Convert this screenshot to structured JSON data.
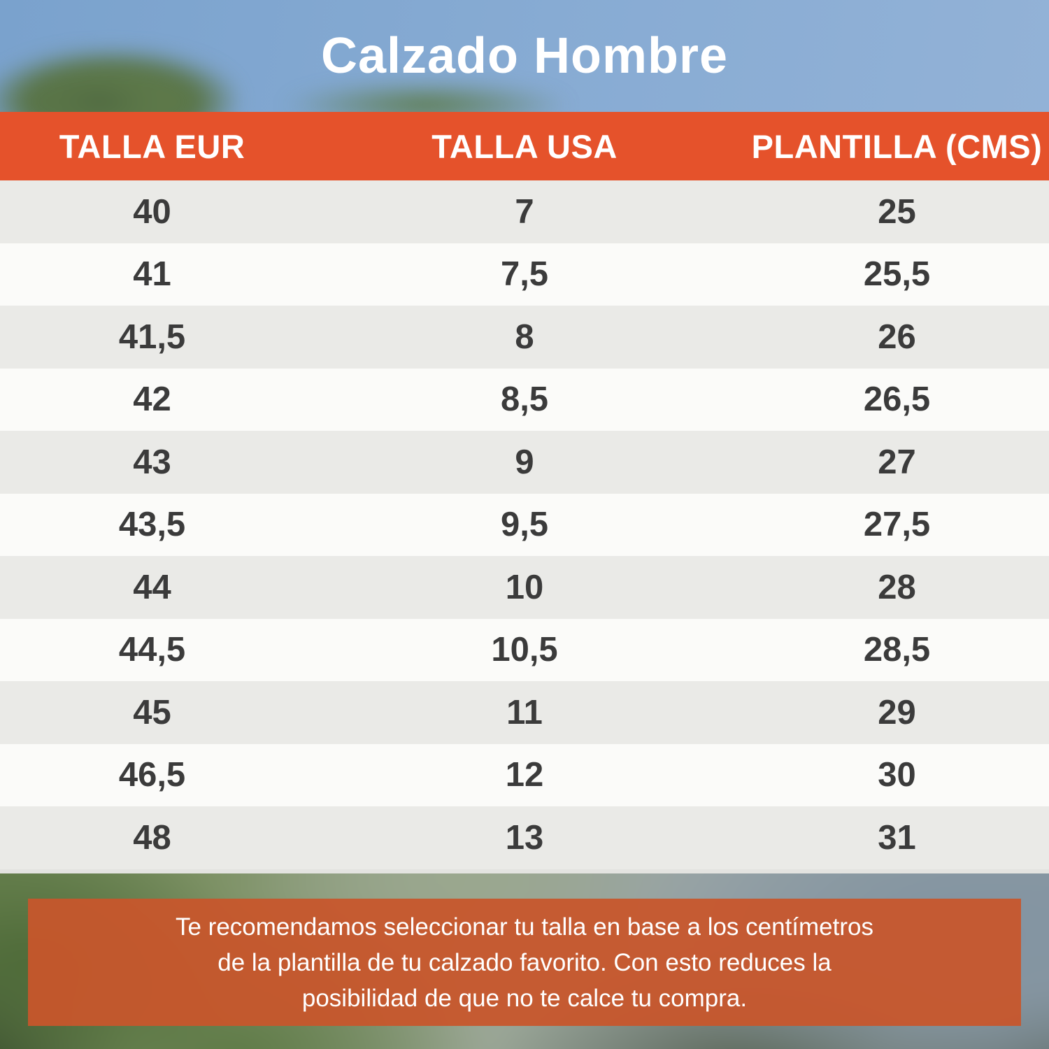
{
  "title": "Calzado Hombre",
  "table": {
    "headers": [
      "TALLA EUR",
      "TALLA USA",
      "PLANTILLA (CMS)"
    ],
    "rows": [
      [
        "40",
        "7",
        "25"
      ],
      [
        "41",
        "7,5",
        "25,5"
      ],
      [
        "41,5",
        "8",
        "26"
      ],
      [
        "42",
        "8,5",
        "26,5"
      ],
      [
        "43",
        "9",
        "27"
      ],
      [
        "43,5",
        "9,5",
        "27,5"
      ],
      [
        "44",
        "10",
        "28"
      ],
      [
        "44,5",
        "10,5",
        "28,5"
      ],
      [
        "45",
        "11",
        "29"
      ],
      [
        "46,5",
        "12",
        "30"
      ],
      [
        "48",
        "13",
        "31"
      ]
    ]
  },
  "note": {
    "lines": [
      "Te recomendamos seleccionar tu talla en base a los centímetros",
      "de la plantilla de tu calzado favorito. Con esto reduces la",
      "posibilidad de que no te calce tu compra."
    ]
  },
  "chart_data": {
    "type": "table",
    "title": "Calzado Hombre",
    "columns": [
      "TALLA EUR",
      "TALLA USA",
      "PLANTILLA (CMS)"
    ],
    "rows": [
      [
        40,
        7,
        25
      ],
      [
        41,
        7.5,
        25.5
      ],
      [
        41.5,
        8,
        26
      ],
      [
        42,
        8.5,
        26.5
      ],
      [
        43,
        9,
        27
      ],
      [
        43.5,
        9.5,
        27.5
      ],
      [
        44,
        10,
        28
      ],
      [
        44.5,
        10.5,
        28.5
      ],
      [
        45,
        11,
        29
      ],
      [
        46.5,
        12,
        30
      ],
      [
        48,
        13,
        31
      ]
    ],
    "decimal_separator": ",",
    "note": "Te recomendamos seleccionar tu talla en base a los centímetros de la plantilla de tu calzado favorito. Con esto reduces la posibilidad de que no te calce tu compra."
  },
  "colors": {
    "header_orange": "#E5522B",
    "note_orange": "#C8562C",
    "row_gray": "#EAEAE7",
    "row_white": "#FBFBF9",
    "text_dark": "#3B3B3B",
    "title_white": "#FFFFFF",
    "sky_blue": "#87ABD3"
  }
}
